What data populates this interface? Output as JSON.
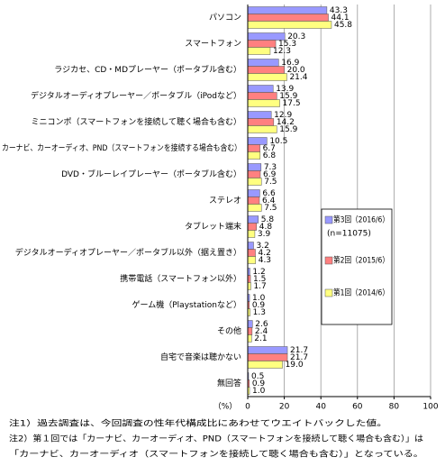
{
  "chart_data": {
    "type": "bar",
    "orientation": "horizontal",
    "categories": [
      "パソコン",
      "スマートフォン",
      "ラジカセ、CD・MDプレーヤー（ポータブル含む）",
      "デジタルオーディオプレーヤー／ポータブル（iPodなど）",
      "ミニコンポ（スマートフォンを接続して聴く場合も含む）",
      "カーナビ、カーオーディオ、PND（スマートフォンを接続する場合も含む）",
      "DVD・ブルーレイプレーヤー（ポータブル含む）",
      "ステレオ",
      "タブレット端末",
      "デジタルオーディオプレーヤー／ポータブル以外（据え置き）",
      "携帯電話（スマートフォン以外）",
      "ゲーム機（Playstationなど）",
      "その他",
      "自宅で音楽は聴かない",
      "無回答"
    ],
    "series": [
      {
        "name": "第3回（2016/6）",
        "color": "#9999ff",
        "values": [
          43.3,
          20.3,
          16.9,
          13.9,
          12.9,
          10.5,
          7.3,
          6.6,
          5.8,
          3.2,
          1.2,
          1.0,
          2.6,
          21.7,
          0.5
        ],
        "value_labels": [
          "43.3",
          "20.3",
          "16.9",
          "13.9",
          "12.9",
          "10.5",
          "7.3",
          "6.6",
          "5.8",
          "3.2",
          "1.2",
          "1.0",
          "2.6",
          "21.7",
          "0.5"
        ]
      },
      {
        "name": "第2回（2015/6）",
        "color": "#ff8080",
        "values": [
          44.1,
          15.3,
          20.0,
          15.9,
          14.2,
          6.7,
          6.9,
          6.4,
          4.8,
          4.2,
          1.5,
          0.9,
          2.4,
          21.7,
          0.9
        ],
        "value_labels": [
          "44.1",
          "15.3",
          "20.0",
          "15.9",
          "14.2",
          "6.7",
          "6.9",
          "6.4",
          "4.8",
          "4.2",
          "1.5",
          "0.9",
          "2.4",
          "21.7",
          "0.9"
        ]
      },
      {
        "name": "第1回（2014/6）",
        "color": "#ffff80",
        "values": [
          45.8,
          12.3,
          21.4,
          17.5,
          15.9,
          6.8,
          7.5,
          7.5,
          3.9,
          4.3,
          1.7,
          1.3,
          2.1,
          19.0,
          1.0
        ],
        "value_labels": [
          "45.8",
          "12.3",
          "21.4",
          "17.5",
          "15.9",
          "6.8",
          "7.5",
          "7.5",
          "3.9",
          "4.3",
          "1.7",
          "1.3",
          "2.1",
          "19.0",
          "1.0"
        ]
      }
    ],
    "legend_note": "(n=11075)",
    "xlabel": "（%）",
    "xlim": [
      0,
      100
    ],
    "xticks": [
      0,
      20,
      40,
      60,
      80,
      100
    ],
    "grid": true,
    "notes": [
      "注1）過去調査は、今回調査の性年代構成比にあわせてウエイトバックした値。",
      "注2）第１回では「カーナビ、カーオーディオ、PND（スマートフォンを接続して聴く場合も含む）」は",
      "「カーナビ、カーオーディオ（スマートフォンを接続して聴く場合も含む）」となっている。"
    ]
  }
}
